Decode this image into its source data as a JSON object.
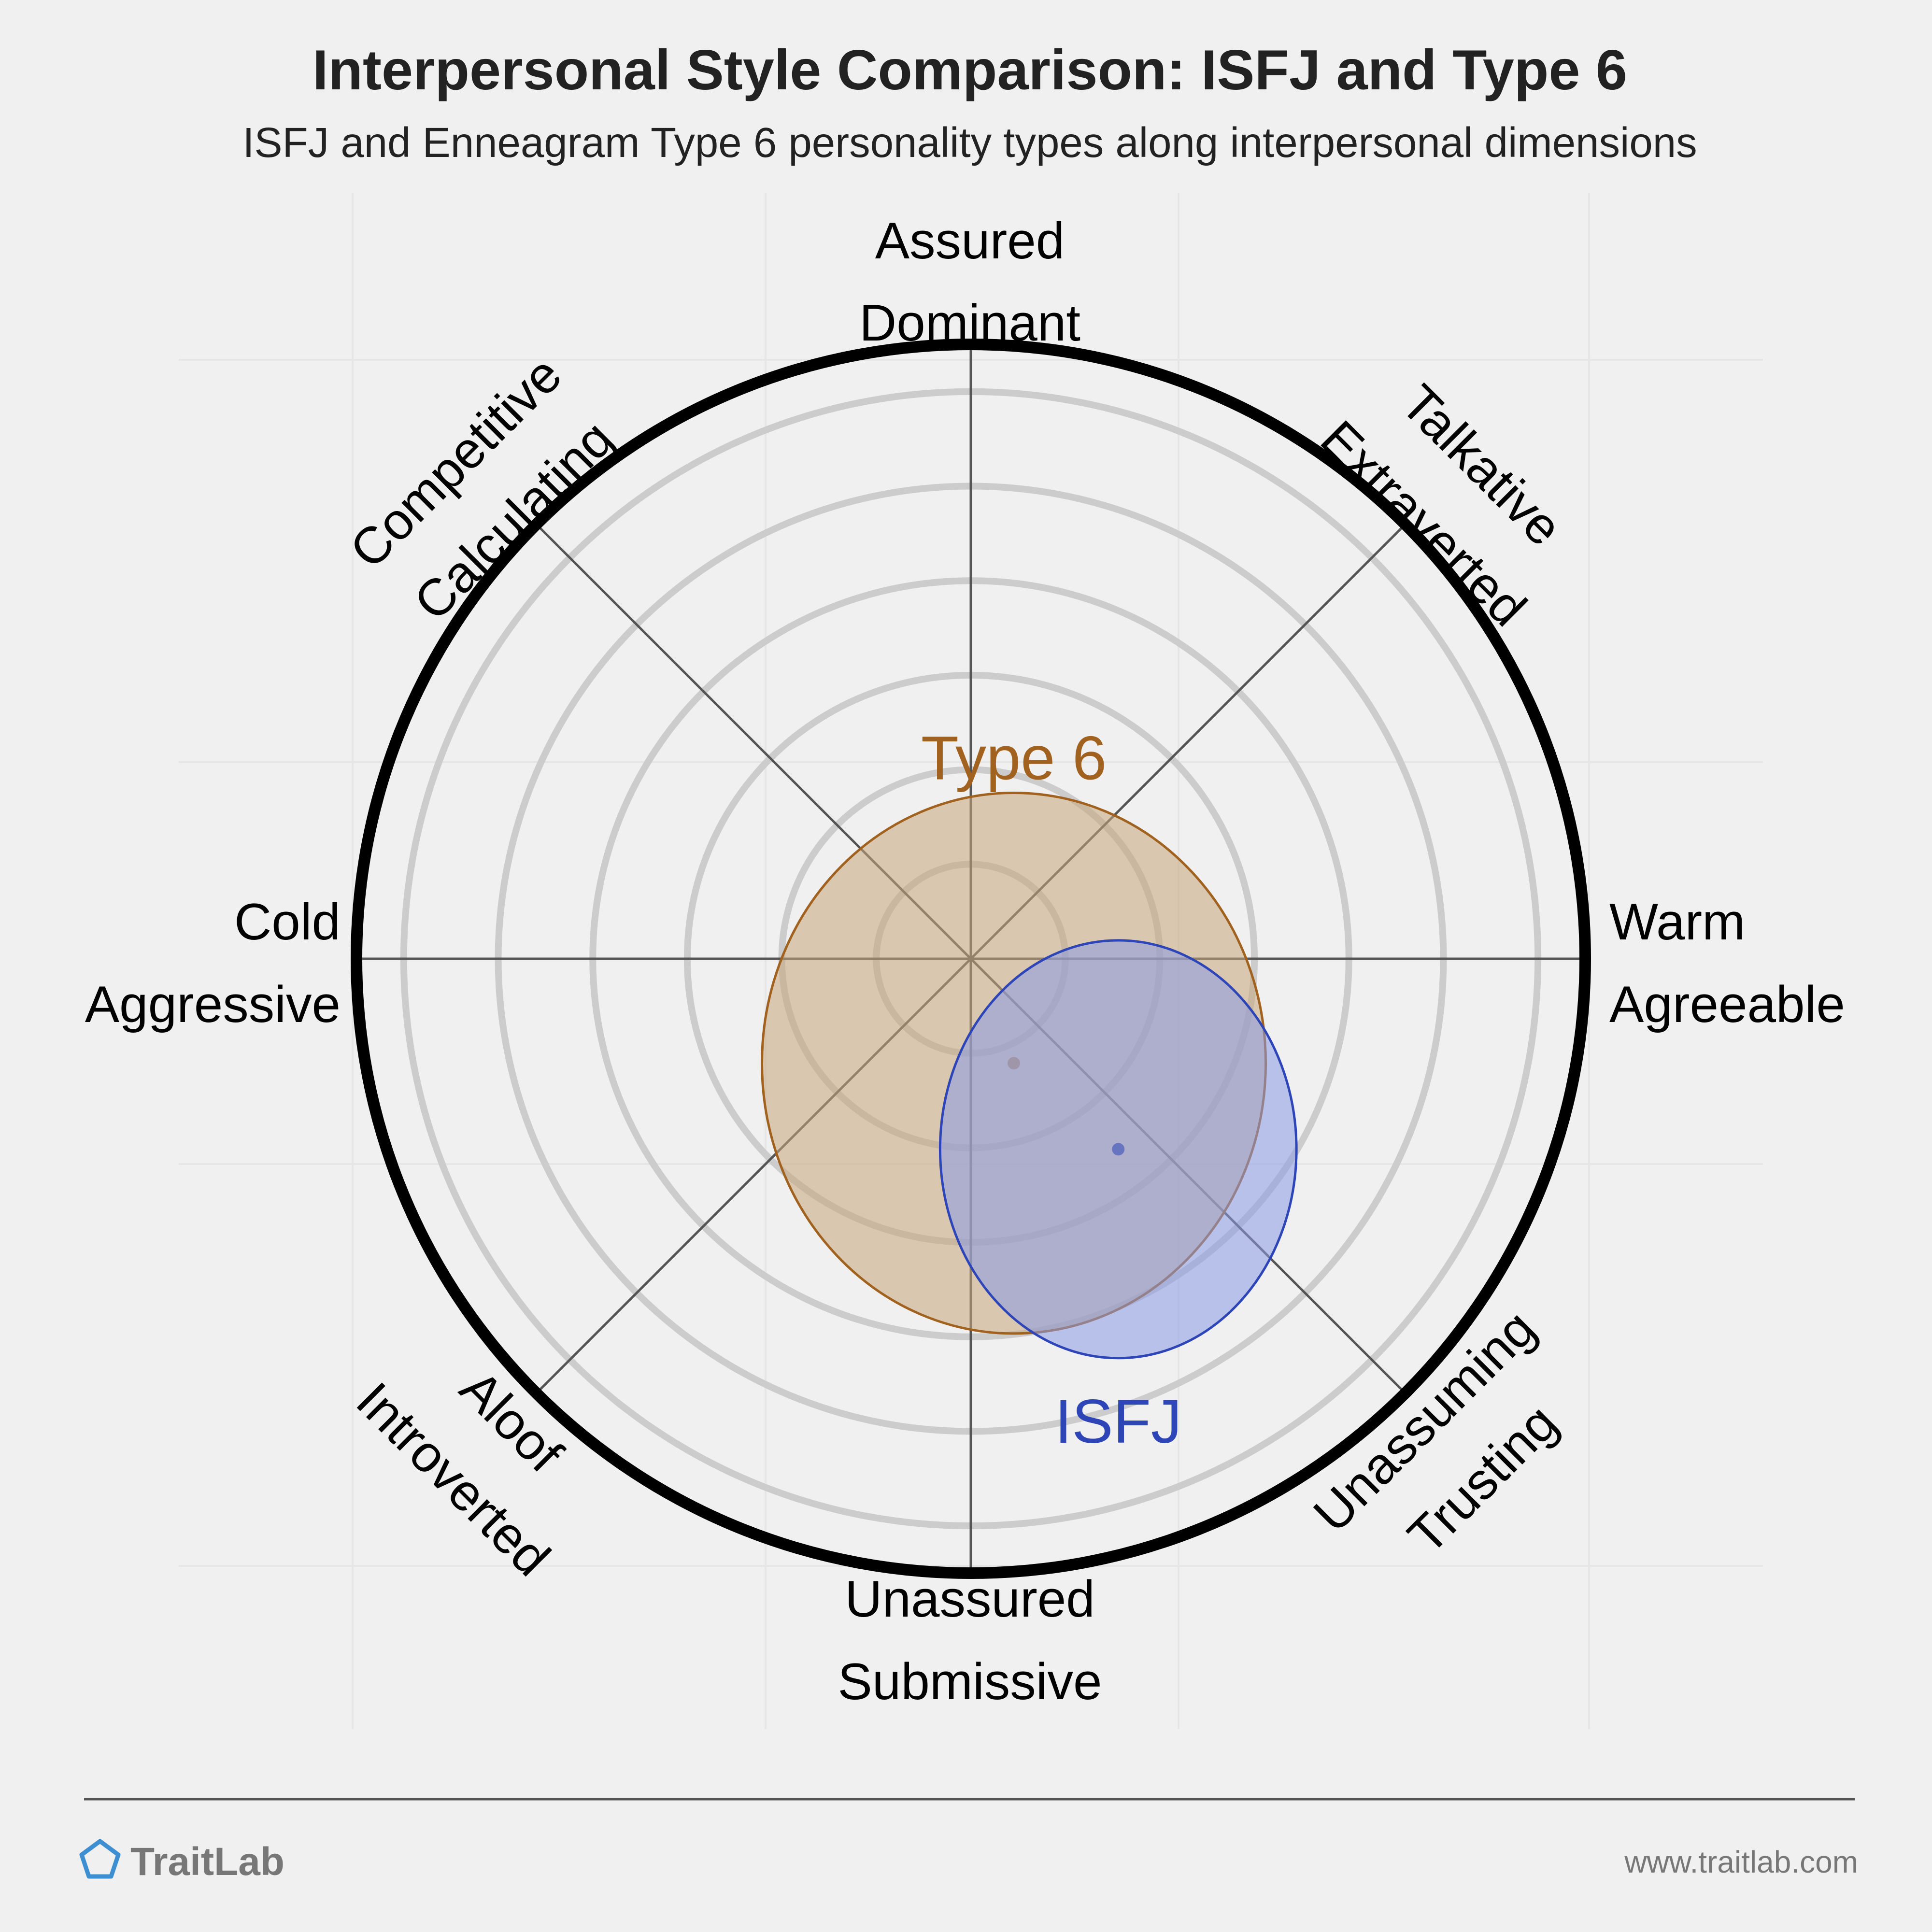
{
  "title": "Interpersonal Style Comparison: ISFJ and Type 6",
  "subtitle": "ISFJ and Enneagram Type 6 personality types along interpersonal dimensions",
  "footer": {
    "brand": "TraitLab",
    "url": "www.traitlab.com",
    "logo_icon": "pentagon-icon",
    "logo_color": "#3d8fd1"
  },
  "chart_data": {
    "type": "scatter",
    "title": "Interpersonal Style Comparison: ISFJ and Type 6",
    "subtitle": "ISFJ and Enneagram Type 6 personality types along interpersonal dimensions",
    "x_axis": {
      "negative": [
        "Cold",
        "Aggressive"
      ],
      "positive": [
        "Warm",
        "Agreeable"
      ]
    },
    "y_axis": {
      "positive": [
        "Assured",
        "Dominant"
      ],
      "negative": [
        "Unassured",
        "Submissive"
      ]
    },
    "diagonals": {
      "upper_left": [
        "Competitive",
        "Calculating"
      ],
      "upper_right": [
        "Talkative",
        "Extraverted"
      ],
      "lower_left": [
        "Aloof",
        "Introverted"
      ],
      "lower_right": [
        "Unassuming",
        "Trusting"
      ]
    },
    "xlim": [
      -1,
      1
    ],
    "ylim": [
      -1,
      1
    ],
    "rings": 6,
    "grid": true,
    "series": [
      {
        "name": "Type 6",
        "x": 0.07,
        "y": -0.17,
        "rx": 0.41,
        "ry": 0.44,
        "color": "#a0621e",
        "fill": "#c8a57c"
      },
      {
        "name": "ISFJ",
        "x": 0.24,
        "y": -0.31,
        "rx": 0.29,
        "ry": 0.34,
        "color": "#2e45b8",
        "fill": "#8a9ae6"
      }
    ]
  }
}
